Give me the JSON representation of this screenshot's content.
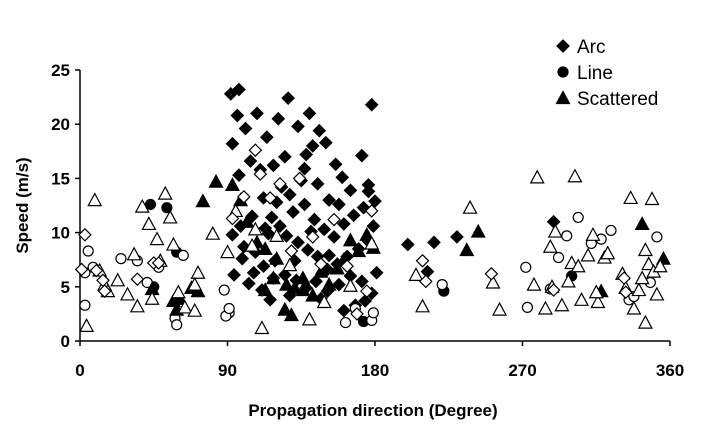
{
  "chart_data": {
    "type": "scatter",
    "title": "",
    "xlabel": "Propagation direction (Degree)",
    "ylabel": "Speed (m/s)",
    "xlim": [
      0,
      360
    ],
    "ylim": [
      0,
      25
    ],
    "xticks": [
      0,
      90,
      180,
      270,
      360
    ],
    "yticks": [
      0,
      5,
      10,
      15,
      20,
      25
    ],
    "grid": false,
    "legend_position": "top-right",
    "colors": {
      "filled": "#000000",
      "open_fill": "#ffffff",
      "stroke": "#000000"
    },
    "legend": [
      {
        "label": "Arc",
        "marker": "diamond"
      },
      {
        "label": "Line",
        "marker": "circle"
      },
      {
        "label": "Scattered",
        "marker": "triangle"
      }
    ],
    "series": [
      {
        "name": "Arc",
        "marker": "diamond",
        "filled": true,
        "points": [
          [
            92,
            22.8
          ],
          [
            97,
            23.2
          ],
          [
            96,
            20.8
          ],
          [
            93,
            18.2
          ],
          [
            101,
            19.6
          ],
          [
            108,
            21.0
          ],
          [
            114,
            18.8
          ],
          [
            121,
            20.5
          ],
          [
            127,
            22.4
          ],
          [
            133,
            19.8
          ],
          [
            140,
            21.0
          ],
          [
            146,
            19.4
          ],
          [
            150,
            18.3
          ],
          [
            138,
            17.2
          ],
          [
            125,
            17.0
          ],
          [
            118,
            16.2
          ],
          [
            110,
            15.8
          ],
          [
            104,
            16.6
          ],
          [
            97,
            15.3
          ],
          [
            156,
            16.3
          ],
          [
            160,
            15.1
          ],
          [
            172,
            17.1
          ],
          [
            178,
            21.8
          ],
          [
            176,
            14.4
          ],
          [
            165,
            13.9
          ],
          [
            158,
            12.6
          ],
          [
            152,
            13.0
          ],
          [
            145,
            14.5
          ],
          [
            135,
            14.8
          ],
          [
            128,
            13.5
          ],
          [
            120,
            12.8
          ],
          [
            112,
            13.2
          ],
          [
            105,
            11.5
          ],
          [
            98,
            10.6
          ],
          [
            93,
            9.8
          ],
          [
            100,
            8.7
          ],
          [
            107,
            8.2
          ],
          [
            115,
            9.9
          ],
          [
            122,
            10.6
          ],
          [
            130,
            11.9
          ],
          [
            137,
            12.6
          ],
          [
            143,
            11.2
          ],
          [
            149,
            10.3
          ],
          [
            155,
            9.6
          ],
          [
            161,
            10.8
          ],
          [
            167,
            11.6
          ],
          [
            173,
            12.3
          ],
          [
            179,
            10.6
          ],
          [
            176,
            9.2
          ],
          [
            170,
            8.5
          ],
          [
            163,
            7.8
          ],
          [
            157,
            7.1
          ],
          [
            151,
            6.6
          ],
          [
            145,
            7.8
          ],
          [
            139,
            8.4
          ],
          [
            133,
            9.1
          ],
          [
            126,
            9.7
          ],
          [
            119,
            7.4
          ],
          [
            112,
            6.9
          ],
          [
            106,
            6.3
          ],
          [
            99,
            7.6
          ],
          [
            94,
            6.1
          ],
          [
            103,
            5.3
          ],
          [
            111,
            4.7
          ],
          [
            118,
            5.8
          ],
          [
            125,
            6.1
          ],
          [
            132,
            5.6
          ],
          [
            138,
            4.9
          ],
          [
            144,
            5.5
          ],
          [
            151,
            4.6
          ],
          [
            158,
            5.2
          ],
          [
            165,
            6.0
          ],
          [
            172,
            5.5
          ],
          [
            178,
            4.4
          ],
          [
            174,
            3.7
          ],
          [
            168,
            3.3
          ],
          [
            161,
            2.8
          ],
          [
            147,
            3.9
          ],
          [
            128,
            4.2
          ],
          [
            116,
            3.8
          ],
          [
            181,
            6.3
          ],
          [
            200,
            8.9
          ],
          [
            212,
            6.4
          ],
          [
            216,
            9.1
          ],
          [
            230,
            9.6
          ],
          [
            289,
            11.0
          ],
          [
            180,
            12.9
          ],
          [
            176,
            13.8
          ],
          [
            123,
            14.2
          ],
          [
            141,
            10.1
          ],
          [
            137,
            15.9
          ],
          [
            142,
            18.0
          ],
          [
            117,
            11.4
          ],
          [
            113,
            10.4
          ],
          [
            131,
            7.4
          ],
          [
            152,
            7.9
          ]
        ]
      },
      {
        "name": "Line",
        "marker": "circle",
        "filled": true,
        "points": [
          [
            43,
            12.6
          ],
          [
            53,
            12.3
          ],
          [
            59,
            8.2
          ],
          [
            45,
            5.0
          ],
          [
            222,
            4.6
          ],
          [
            300,
            6.0
          ],
          [
            173,
            1.8
          ]
        ]
      },
      {
        "name": "Line",
        "marker": "circle",
        "filled": false,
        "points": [
          [
            3,
            6.3
          ],
          [
            5,
            8.3
          ],
          [
            8,
            6.8
          ],
          [
            3,
            3.3
          ],
          [
            25,
            7.6
          ],
          [
            35,
            7.4
          ],
          [
            41,
            5.4
          ],
          [
            48,
            6.8
          ],
          [
            63,
            7.9
          ],
          [
            58,
            2.1
          ],
          [
            59,
            1.5
          ],
          [
            88,
            4.7
          ],
          [
            91,
            2.6
          ],
          [
            89,
            2.3
          ],
          [
            91,
            3.0
          ],
          [
            162,
            1.7
          ],
          [
            168,
            3.0
          ],
          [
            178,
            1.9
          ],
          [
            179,
            2.6
          ],
          [
            221,
            5.2
          ],
          [
            273,
            3.1
          ],
          [
            272,
            6.8
          ],
          [
            287,
            4.8
          ],
          [
            292,
            7.7
          ],
          [
            297,
            9.7
          ],
          [
            304,
            11.4
          ],
          [
            312,
            9.0
          ],
          [
            318,
            9.4
          ],
          [
            324,
            10.2
          ],
          [
            335,
            3.8
          ],
          [
            338,
            4.1
          ],
          [
            348,
            5.4
          ],
          [
            352,
            9.6
          ]
        ]
      },
      {
        "name": "Scattered",
        "marker": "triangle",
        "filled": true,
        "points": [
          [
            83,
            14.7
          ],
          [
            75,
            12.9
          ],
          [
            93,
            14.4
          ],
          [
            98,
            13.0
          ],
          [
            102,
            11.0
          ],
          [
            108,
            9.1
          ],
          [
            113,
            8.5
          ],
          [
            120,
            7.6
          ],
          [
            126,
            5.2
          ],
          [
            131,
            4.9
          ],
          [
            136,
            5.8
          ],
          [
            142,
            4.2
          ],
          [
            147,
            6.4
          ],
          [
            152,
            5.2
          ],
          [
            157,
            6.7
          ],
          [
            161,
            7.5
          ],
          [
            165,
            9.3
          ],
          [
            170,
            8.3
          ],
          [
            175,
            9.8
          ],
          [
            179,
            8.6
          ],
          [
            113,
            4.7
          ],
          [
            118,
            5.8
          ],
          [
            125,
            2.9
          ],
          [
            129,
            2.4
          ],
          [
            136,
            4.7
          ],
          [
            57,
            3.7
          ],
          [
            61,
            3.9
          ],
          [
            68,
            4.9
          ],
          [
            72,
            4.6
          ],
          [
            59,
            2.9
          ],
          [
            236,
            8.4
          ],
          [
            243,
            10.1
          ],
          [
            318,
            4.6
          ],
          [
            343,
            10.8
          ],
          [
            356,
            7.6
          ],
          [
            44,
            4.8
          ]
        ]
      },
      {
        "name": "Scattered",
        "marker": "triangle",
        "filled": false,
        "points": [
          [
            9,
            13.0
          ],
          [
            12,
            6.5
          ],
          [
            15,
            5.2
          ],
          [
            17,
            4.6
          ],
          [
            23,
            5.6
          ],
          [
            29,
            4.3
          ],
          [
            33,
            8.0
          ],
          [
            35,
            3.2
          ],
          [
            38,
            12.4
          ],
          [
            42,
            10.8
          ],
          [
            44,
            3.9
          ],
          [
            47,
            9.4
          ],
          [
            49,
            7.4
          ],
          [
            52,
            13.6
          ],
          [
            55,
            11.4
          ],
          [
            57,
            8.9
          ],
          [
            60,
            4.5
          ],
          [
            64,
            3.1
          ],
          [
            70,
            2.8
          ],
          [
            72,
            6.3
          ],
          [
            70,
            5.2
          ],
          [
            4,
            1.4
          ],
          [
            81,
            9.9
          ],
          [
            90,
            8.2
          ],
          [
            95,
            12.0
          ],
          [
            105,
            8.8
          ],
          [
            107,
            10.3
          ],
          [
            111,
            1.2
          ],
          [
            120,
            9.7
          ],
          [
            128,
            7.0
          ],
          [
            140,
            2.0
          ],
          [
            149,
            3.6
          ],
          [
            165,
            5.1
          ],
          [
            178,
            9.0
          ],
          [
            205,
            6.1
          ],
          [
            209,
            3.2
          ],
          [
            238,
            12.3
          ],
          [
            252,
            5.4
          ],
          [
            256,
            2.9
          ],
          [
            277,
            5.2
          ],
          [
            279,
            15.1
          ],
          [
            284,
            3.0
          ],
          [
            287,
            8.7
          ],
          [
            290,
            10.1
          ],
          [
            294,
            3.3
          ],
          [
            298,
            5.5
          ],
          [
            300,
            7.2
          ],
          [
            302,
            15.2
          ],
          [
            304,
            6.9
          ],
          [
            306,
            3.8
          ],
          [
            310,
            7.9
          ],
          [
            313,
            9.8
          ],
          [
            316,
            3.6
          ],
          [
            320,
            7.7
          ],
          [
            331,
            6.2
          ],
          [
            333,
            4.9
          ],
          [
            336,
            13.2
          ],
          [
            338,
            3.0
          ],
          [
            341,
            4.7
          ],
          [
            343,
            5.8
          ],
          [
            345,
            1.7
          ],
          [
            347,
            7.1
          ],
          [
            349,
            13.1
          ],
          [
            350,
            6.4
          ],
          [
            352,
            4.3
          ],
          [
            354,
            6.9
          ],
          [
            345,
            8.4
          ],
          [
            322,
            8.1
          ],
          [
            315,
            4.5
          ],
          [
            288,
            5.0
          ]
        ]
      },
      {
        "name": "Arc",
        "marker": "diamond",
        "filled": false,
        "points": [
          [
            3,
            9.8
          ],
          [
            1,
            6.6
          ],
          [
            10,
            6.5
          ],
          [
            14,
            5.6
          ],
          [
            15,
            4.6
          ],
          [
            35,
            5.7
          ],
          [
            45,
            7.2
          ],
          [
            48,
            7.2
          ],
          [
            93,
            11.3
          ],
          [
            100,
            13.3
          ],
          [
            107,
            17.6
          ],
          [
            110,
            15.4
          ],
          [
            116,
            13.2
          ],
          [
            122,
            14.5
          ],
          [
            129,
            8.3
          ],
          [
            134,
            15.0
          ],
          [
            142,
            9.6
          ],
          [
            147,
            7.1
          ],
          [
            155,
            11.2
          ],
          [
            163,
            6.9
          ],
          [
            169,
            2.5
          ],
          [
            175,
            4.6
          ],
          [
            178,
            12.0
          ],
          [
            209,
            7.4
          ],
          [
            211,
            5.5
          ],
          [
            251,
            6.2
          ],
          [
            289,
            4.7
          ],
          [
            332,
            5.8
          ],
          [
            333,
            4.5
          ]
        ]
      }
    ]
  }
}
